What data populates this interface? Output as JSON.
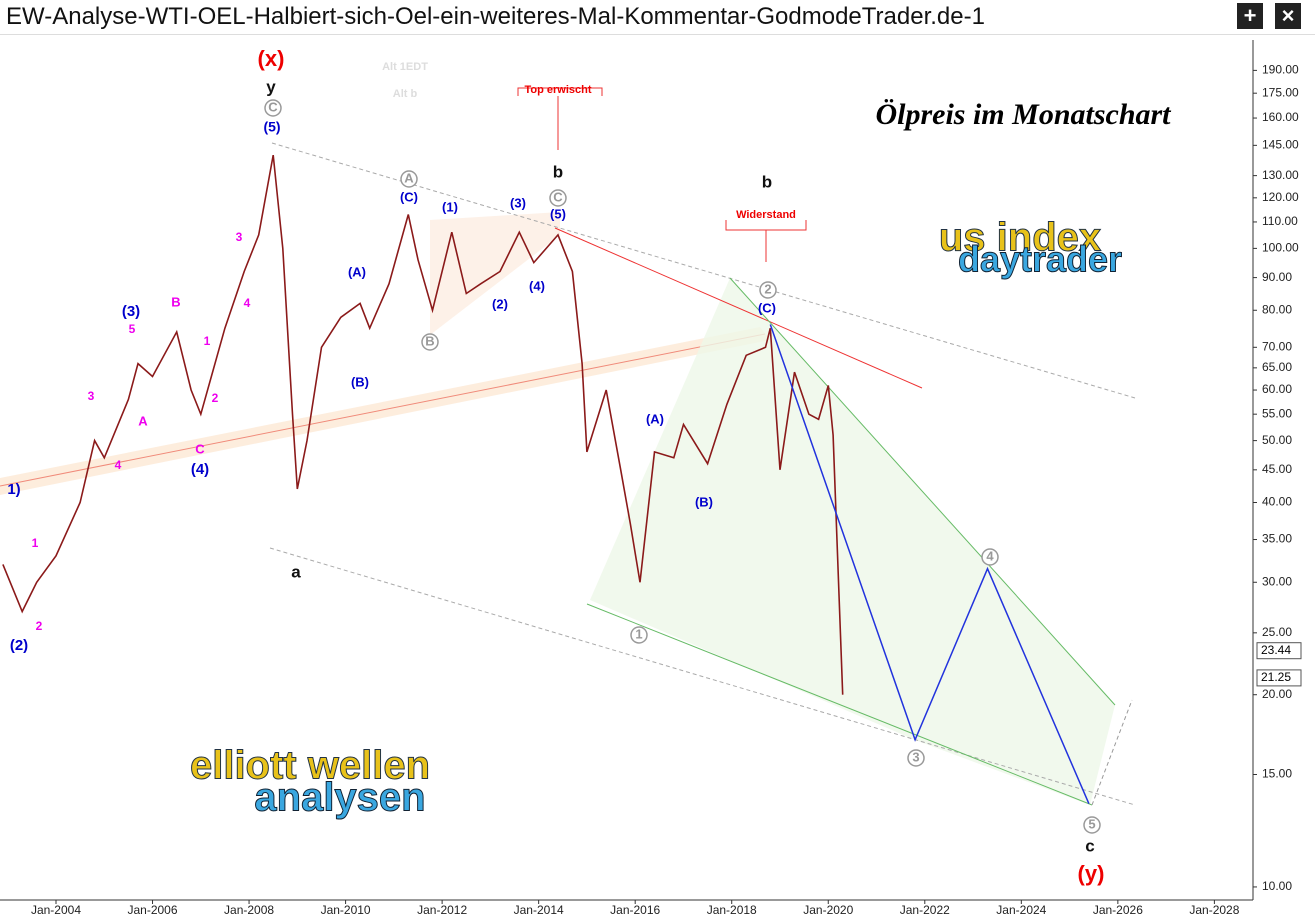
{
  "window_title": "EW-Analyse-WTI-OEL-Halbiert-sich-Oel-ein-weiteres-Mal-Kommentar-GodmodeTrader.de-1",
  "chart_data": {
    "type": "line",
    "title": "Ölpreis im Monatschart",
    "log_scale": true,
    "x": [
      2002.9,
      2003.3,
      2003.6,
      2004.0,
      2004.5,
      2004.8,
      2005.0,
      2005.5,
      2005.7,
      2006.0,
      2006.5,
      2006.8,
      2007.0,
      2007.5,
      2007.9,
      2008.2,
      2008.5,
      2008.7,
      2008.9,
      2009.0,
      2009.2,
      2009.5,
      2009.9,
      2010.3,
      2010.5,
      2010.9,
      2011.3,
      2011.5,
      2011.8,
      2012.2,
      2012.5,
      2012.8,
      2013.2,
      2013.6,
      2013.9,
      2014.4,
      2014.7,
      2014.9,
      2015.0,
      2015.4,
      2015.7,
      2015.9,
      2016.1,
      2016.4,
      2016.8,
      2017.0,
      2017.5,
      2017.9,
      2018.3,
      2018.7,
      2018.8,
      2019.0,
      2019.3,
      2019.6,
      2019.8,
      2020.0,
      2020.1,
      2020.3
    ],
    "series": [
      {
        "color": "#8b1a1a",
        "values": [
          32,
          27,
          30,
          33,
          40,
          50,
          47,
          58,
          66,
          63,
          74,
          60,
          55,
          75,
          92,
          105,
          140,
          100,
          55,
          42,
          50,
          70,
          78,
          82,
          75,
          88,
          113,
          96,
          80,
          106,
          85,
          88,
          92,
          106,
          95,
          105,
          92,
          66,
          48,
          60,
          45,
          37,
          30,
          48,
          47,
          53,
          46,
          57,
          68,
          70,
          75,
          45,
          64,
          55,
          54,
          61,
          51,
          20
        ]
      },
      {
        "color": "#2233dd",
        "x": [
          2018.8,
          2021.8,
          2023.3,
          2025.4
        ],
        "values": [
          76,
          17,
          31.5,
          13.5
        ]
      }
    ],
    "ylim": [
      9.54,
      212
    ],
    "yticks": [
      {
        "value": 10,
        "label": "10.00"
      },
      {
        "value": 15,
        "label": "15.00"
      },
      {
        "value": 20,
        "label": "20.00"
      },
      {
        "value": 25,
        "label": "25.00"
      },
      {
        "value": 30,
        "label": "30.00"
      },
      {
        "value": 35,
        "label": "35.00"
      },
      {
        "value": 40,
        "label": "40.00"
      },
      {
        "value": 45,
        "label": "45.00"
      },
      {
        "value": 50,
        "label": "50.00"
      },
      {
        "value": 55,
        "label": "55.00"
      },
      {
        "value": 60,
        "label": "60.00"
      },
      {
        "value": 65,
        "label": "65.00"
      },
      {
        "value": 70,
        "label": "70.00"
      },
      {
        "value": 80,
        "label": "80.00"
      },
      {
        "value": 90,
        "label": "90.00"
      },
      {
        "value": 100,
        "label": "100.00"
      },
      {
        "value": 110,
        "label": "110.00"
      },
      {
        "value": 120,
        "label": "120.00"
      },
      {
        "value": 130,
        "label": "130.00"
      },
      {
        "value": 145,
        "label": "145.00"
      },
      {
        "value": 160,
        "label": "160.00"
      },
      {
        "value": 175,
        "label": "175.00"
      },
      {
        "value": 190,
        "label": "190.00"
      }
    ],
    "xlim": [
      2002.84,
      2028.8
    ],
    "xticks": [
      {
        "value": 2004,
        "label": "Jan-2004"
      },
      {
        "value": 2006,
        "label": "Jan-2006"
      },
      {
        "value": 2008,
        "label": "Jan-2008"
      },
      {
        "value": 2010,
        "label": "Jan-2010"
      },
      {
        "value": 2012,
        "label": "Jan-2012"
      },
      {
        "value": 2014,
        "label": "Jan-2014"
      },
      {
        "value": 2016,
        "label": "Jan-2016"
      },
      {
        "value": 2018,
        "label": "Jan-2018"
      },
      {
        "value": 2020,
        "label": "Jan-2020"
      },
      {
        "value": 2022,
        "label": "Jan-2022"
      },
      {
        "value": 2024,
        "label": "Jan-2024"
      },
      {
        "value": 2026,
        "label": "Jan-2026"
      },
      {
        "value": 2028,
        "label": "Jan-2028"
      }
    ],
    "price_marks": [
      23.44,
      21.25
    ],
    "annotations": [
      "(x)",
      "y",
      "C",
      "(5)",
      "A",
      "(C)",
      "(1)",
      "(3)",
      "C",
      "(5)",
      "b",
      "Top erwischt",
      "(A)",
      "(B)",
      "B",
      "(2)",
      "(4)",
      "b",
      "Widerstand",
      "2",
      "(C)",
      "(A)",
      "(B)",
      "1",
      "a",
      "(3)",
      "5",
      "B",
      "1",
      "3",
      "4",
      "3",
      "A",
      "2",
      "C",
      "4",
      "(4)",
      "1)",
      "1",
      "2",
      "(2)",
      "3",
      "4",
      "5",
      "c",
      "(y)",
      "Alt 1EDT",
      "Alt b"
    ],
    "logos": [
      "us index",
      "daytrader",
      "elliott wellen",
      "analysen"
    ]
  }
}
